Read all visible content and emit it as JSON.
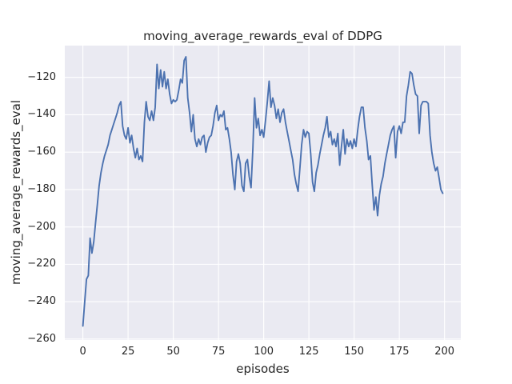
{
  "figure": {
    "title": "moving_average_rewards_eval of DDPG",
    "xlabel": "episodes",
    "ylabel": "moving_average_rewards_eval"
  },
  "chart_data": {
    "type": "line",
    "title": "moving_average_rewards_eval of DDPG",
    "xlabel": "episodes",
    "ylabel": "moving_average_rewards_eval",
    "xlim": [
      -10,
      209
    ],
    "ylim": [
      -260.5,
      -103
    ],
    "x_ticks": [
      0,
      25,
      50,
      75,
      100,
      125,
      150,
      175,
      200
    ],
    "y_ticks": [
      -120,
      -140,
      -160,
      -180,
      -200,
      -220,
      -240,
      -260
    ],
    "x_tick_labels": [
      "0",
      "25",
      "50",
      "75",
      "100",
      "125",
      "150",
      "175",
      "200"
    ],
    "y_tick_labels": [
      "−120",
      "−140",
      "−160",
      "−180",
      "−200",
      "−220",
      "−240",
      "−260"
    ],
    "grid": true,
    "legend": "none",
    "colors": {
      "line": "#4c72b0",
      "plot_background": "#eaeaf2",
      "grid": "#ffffff",
      "text": "#262626",
      "figure_background": "#ffffff"
    },
    "series": [
      {
        "name": "moving_average_rewards_eval",
        "x_start": 0,
        "x_step": 1,
        "values": [
          -253,
          -240,
          -228,
          -226,
          -206,
          -214,
          -208,
          -198,
          -188,
          -178,
          -171,
          -166,
          -162,
          -159,
          -156,
          -151,
          -148,
          -145,
          -142,
          -139,
          -135,
          -133,
          -146,
          -151,
          -153,
          -147,
          -155,
          -151,
          -158,
          -163,
          -158,
          -164,
          -162,
          -165,
          -144,
          -133,
          -141,
          -143,
          -138,
          -143,
          -136,
          -113,
          -126,
          -116,
          -125,
          -117,
          -126,
          -121,
          -129,
          -134,
          -132,
          -133,
          -132,
          -127,
          -121,
          -123,
          -111,
          -109,
          -131,
          -139,
          -149,
          -140,
          -153,
          -157,
          -153,
          -156,
          -152,
          -151,
          -160,
          -155,
          -152,
          -151,
          -146,
          -139,
          -135,
          -143,
          -140,
          -141,
          -138,
          -148,
          -147,
          -153,
          -160,
          -172,
          -180,
          -165,
          -161,
          -166,
          -178,
          -181,
          -166,
          -164,
          -173,
          -179,
          -158,
          -131,
          -147,
          -142,
          -151,
          -148,
          -152,
          -143,
          -133,
          -122,
          -136,
          -131,
          -135,
          -142,
          -137,
          -144,
          -139,
          -137,
          -144,
          -149,
          -154,
          -159,
          -164,
          -172,
          -177,
          -181,
          -169,
          -156,
          -148,
          -152,
          -149,
          -150,
          -161,
          -176,
          -181,
          -171,
          -167,
          -161,
          -156,
          -151,
          -147,
          -141,
          -152,
          -149,
          -156,
          -153,
          -157,
          -150,
          -167,
          -157,
          -148,
          -161,
          -153,
          -157,
          -154,
          -158,
          -153,
          -157,
          -148,
          -141,
          -136,
          -136,
          -147,
          -154,
          -164,
          -162,
          -177,
          -191,
          -184,
          -194,
          -183,
          -177,
          -173,
          -166,
          -161,
          -156,
          -151,
          -148,
          -146,
          -163,
          -149,
          -146,
          -150,
          -144,
          -144,
          -130,
          -124,
          -117,
          -118,
          -124,
          -129,
          -130,
          -150,
          -135,
          -133,
          -133,
          -133,
          -134,
          -151,
          -160,
          -166,
          -170,
          -168,
          -174,
          -180,
          -182
        ]
      }
    ]
  }
}
